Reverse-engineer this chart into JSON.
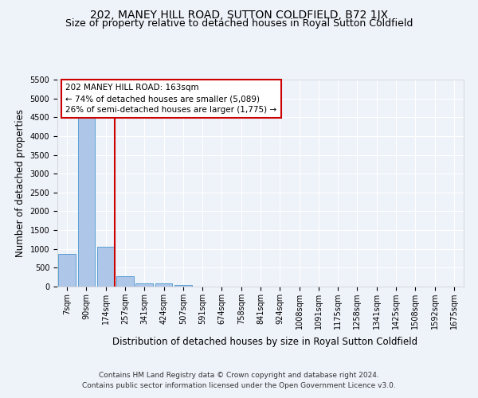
{
  "title": "202, MANEY HILL ROAD, SUTTON COLDFIELD, B72 1JX",
  "subtitle": "Size of property relative to detached houses in Royal Sutton Coldfield",
  "xlabel": "Distribution of detached houses by size in Royal Sutton Coldfield",
  "ylabel": "Number of detached properties",
  "footer_line1": "Contains HM Land Registry data © Crown copyright and database right 2024.",
  "footer_line2": "Contains public sector information licensed under the Open Government Licence v3.0.",
  "annotation_line1": "202 MANEY HILL ROAD: 163sqm",
  "annotation_line2": "← 74% of detached houses are smaller (5,089)",
  "annotation_line3": "26% of semi-detached houses are larger (1,775) →",
  "bar_labels": [
    "7sqm",
    "90sqm",
    "174sqm",
    "257sqm",
    "341sqm",
    "424sqm",
    "507sqm",
    "591sqm",
    "674sqm",
    "758sqm",
    "841sqm",
    "924sqm",
    "1008sqm",
    "1091sqm",
    "1175sqm",
    "1258sqm",
    "1341sqm",
    "1425sqm",
    "1508sqm",
    "1592sqm",
    "1675sqm"
  ],
  "bar_values": [
    870,
    4550,
    1060,
    280,
    95,
    85,
    50,
    0,
    0,
    0,
    0,
    0,
    0,
    0,
    0,
    0,
    0,
    0,
    0,
    0,
    0
  ],
  "bar_color": "#aec6e8",
  "bar_edge_color": "#5a9fd4",
  "vline_color": "#cc0000",
  "ylim": [
    0,
    5500
  ],
  "yticks": [
    0,
    500,
    1000,
    1500,
    2000,
    2500,
    3000,
    3500,
    4000,
    4500,
    5000,
    5500
  ],
  "annotation_box_color": "#cc0000",
  "background_color": "#eef2f9",
  "grid_color": "#ffffff",
  "title_fontsize": 10,
  "subtitle_fontsize": 9,
  "axis_label_fontsize": 8.5,
  "tick_fontsize": 7,
  "annotation_fontsize": 7.5,
  "footer_fontsize": 6.5
}
